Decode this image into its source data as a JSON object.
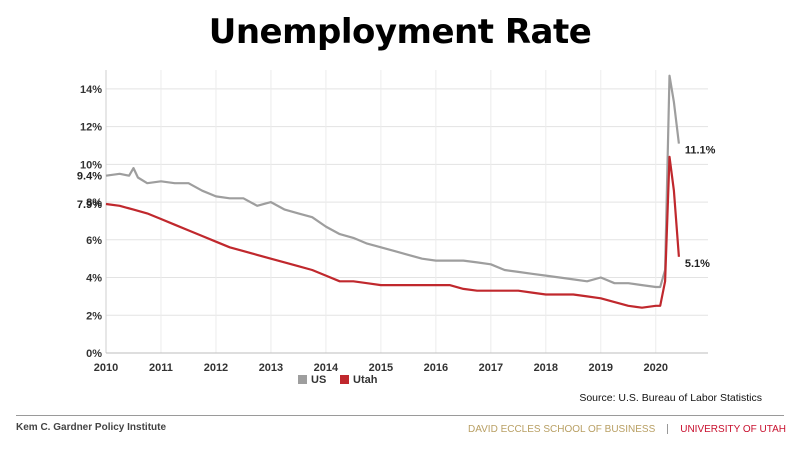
{
  "chart_data": {
    "type": "line",
    "title": "Unemployment Rate",
    "ylim": [
      0,
      15
    ],
    "xlim": [
      2010,
      2020.95
    ],
    "yticks": [
      0,
      2,
      4,
      6,
      8,
      10,
      12,
      14
    ],
    "ytick_labels": [
      "0%",
      "2%",
      "4%",
      "6%",
      "8%",
      "10%",
      "12%",
      "14%"
    ],
    "xticks": [
      2010,
      2011,
      2012,
      2013,
      2014,
      2015,
      2016,
      2017,
      2018,
      2019,
      2020
    ],
    "xtick_labels": [
      "2010",
      "2011",
      "2012",
      "2013",
      "2014",
      "2015",
      "2016",
      "2017",
      "2018",
      "2019",
      "2020"
    ],
    "grid": true,
    "legend_position": "bottom-left",
    "series": [
      {
        "name": "US",
        "color": "#9e9e9e",
        "points": [
          [
            2010.0,
            9.4
          ],
          [
            2010.25,
            9.5
          ],
          [
            2010.42,
            9.4
          ],
          [
            2010.5,
            9.8
          ],
          [
            2010.58,
            9.3
          ],
          [
            2010.75,
            9.0
          ],
          [
            2011.0,
            9.1
          ],
          [
            2011.25,
            9.0
          ],
          [
            2011.5,
            9.0
          ],
          [
            2011.75,
            8.6
          ],
          [
            2012.0,
            8.3
          ],
          [
            2012.25,
            8.2
          ],
          [
            2012.5,
            8.2
          ],
          [
            2012.75,
            7.8
          ],
          [
            2013.0,
            8.0
          ],
          [
            2013.25,
            7.6
          ],
          [
            2013.5,
            7.4
          ],
          [
            2013.75,
            7.2
          ],
          [
            2014.0,
            6.7
          ],
          [
            2014.25,
            6.3
          ],
          [
            2014.5,
            6.1
          ],
          [
            2014.75,
            5.8
          ],
          [
            2015.0,
            5.6
          ],
          [
            2015.25,
            5.4
          ],
          [
            2015.5,
            5.2
          ],
          [
            2015.75,
            5.0
          ],
          [
            2016.0,
            4.9
          ],
          [
            2016.25,
            4.9
          ],
          [
            2016.5,
            4.9
          ],
          [
            2016.75,
            4.8
          ],
          [
            2017.0,
            4.7
          ],
          [
            2017.25,
            4.4
          ],
          [
            2017.5,
            4.3
          ],
          [
            2017.75,
            4.2
          ],
          [
            2018.0,
            4.1
          ],
          [
            2018.25,
            4.0
          ],
          [
            2018.5,
            3.9
          ],
          [
            2018.75,
            3.8
          ],
          [
            2019.0,
            4.0
          ],
          [
            2019.25,
            3.7
          ],
          [
            2019.5,
            3.7
          ],
          [
            2019.75,
            3.6
          ],
          [
            2020.0,
            3.5
          ],
          [
            2020.08,
            3.5
          ],
          [
            2020.17,
            4.4
          ],
          [
            2020.25,
            14.7
          ],
          [
            2020.33,
            13.3
          ],
          [
            2020.42,
            11.1
          ]
        ],
        "labels": [
          {
            "x": 2010.0,
            "y": 9.4,
            "text": "9.4%",
            "side": "left"
          },
          {
            "x": 2020.42,
            "y": 11.1,
            "text": "11.1%",
            "side": "right"
          }
        ]
      },
      {
        "name": "Utah",
        "color": "#c0282d",
        "points": [
          [
            2010.0,
            7.9
          ],
          [
            2010.25,
            7.8
          ],
          [
            2010.5,
            7.6
          ],
          [
            2010.75,
            7.4
          ],
          [
            2011.0,
            7.1
          ],
          [
            2011.25,
            6.8
          ],
          [
            2011.5,
            6.5
          ],
          [
            2011.75,
            6.2
          ],
          [
            2012.0,
            5.9
          ],
          [
            2012.25,
            5.6
          ],
          [
            2012.5,
            5.4
          ],
          [
            2012.75,
            5.2
          ],
          [
            2013.0,
            5.0
          ],
          [
            2013.25,
            4.8
          ],
          [
            2013.5,
            4.6
          ],
          [
            2013.75,
            4.4
          ],
          [
            2014.0,
            4.1
          ],
          [
            2014.25,
            3.8
          ],
          [
            2014.5,
            3.8
          ],
          [
            2014.75,
            3.7
          ],
          [
            2015.0,
            3.6
          ],
          [
            2015.5,
            3.6
          ],
          [
            2016.0,
            3.6
          ],
          [
            2016.25,
            3.6
          ],
          [
            2016.5,
            3.4
          ],
          [
            2016.75,
            3.3
          ],
          [
            2017.0,
            3.3
          ],
          [
            2017.5,
            3.3
          ],
          [
            2017.75,
            3.2
          ],
          [
            2018.0,
            3.1
          ],
          [
            2018.5,
            3.1
          ],
          [
            2018.75,
            3.0
          ],
          [
            2019.0,
            2.9
          ],
          [
            2019.25,
            2.7
          ],
          [
            2019.5,
            2.5
          ],
          [
            2019.75,
            2.4
          ],
          [
            2020.0,
            2.5
          ],
          [
            2020.08,
            2.5
          ],
          [
            2020.17,
            3.8
          ],
          [
            2020.25,
            10.4
          ],
          [
            2020.33,
            8.6
          ],
          [
            2020.42,
            5.1
          ]
        ],
        "labels": [
          {
            "x": 2010.0,
            "y": 7.9,
            "text": "7.9%",
            "side": "left"
          },
          {
            "x": 2020.42,
            "y": 5.1,
            "text": "5.1%",
            "side": "right"
          }
        ]
      }
    ]
  },
  "source": "Source: U.S. Bureau of Labor Statistics",
  "footer": {
    "institute": "Kem C. Gardner Policy Institute",
    "school": "DAVID ECCLES SCHOOL OF BUSINESS",
    "university": "UNIVERSITY OF UTAH"
  }
}
